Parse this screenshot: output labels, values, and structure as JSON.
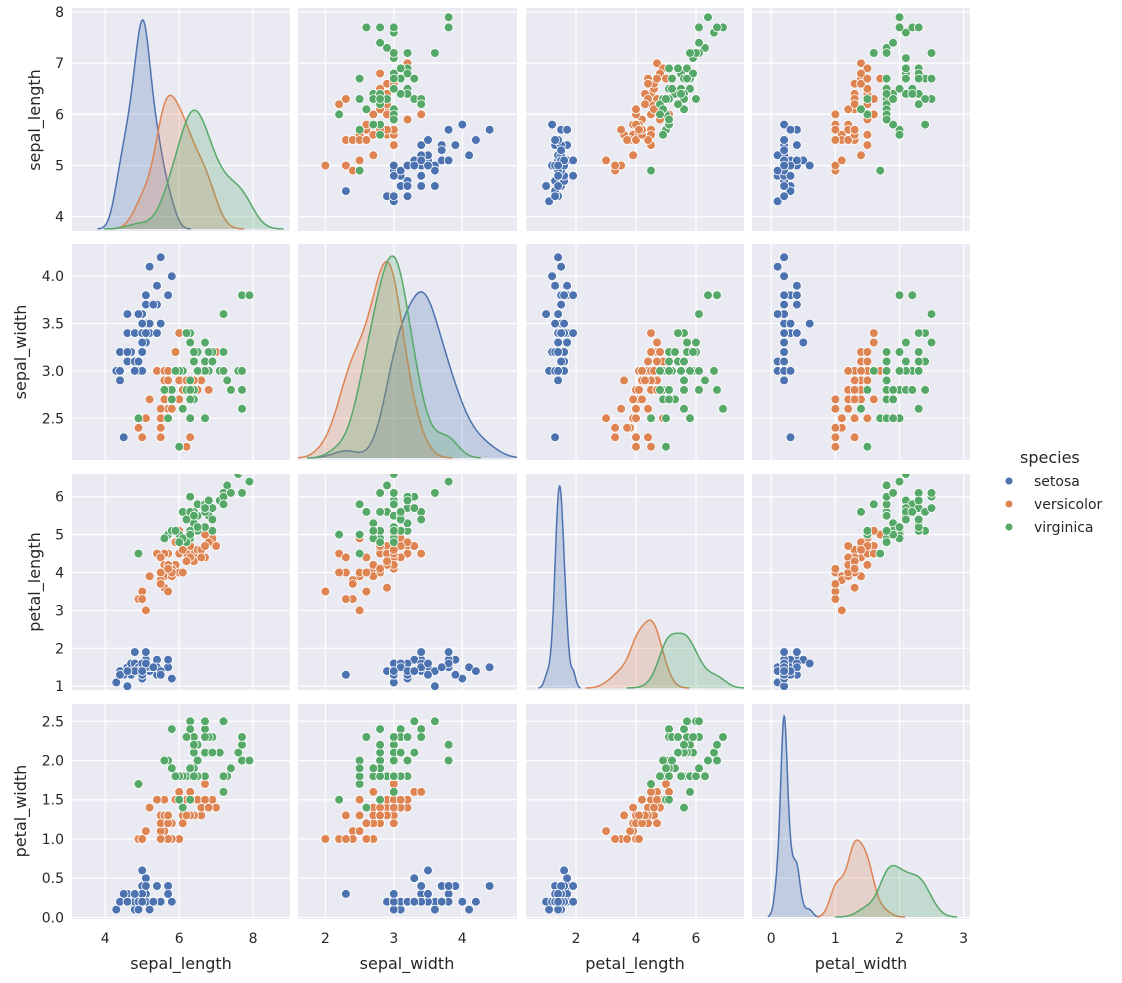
{
  "chart_data": {
    "type": "scatter",
    "subtype": "pairplot",
    "variables": [
      "sepal_length",
      "sepal_width",
      "petal_length",
      "petal_width"
    ],
    "hue": "species",
    "legend": {
      "title": "species",
      "placement": "right",
      "entries": [
        {
          "label": "setosa",
          "color": "#4c72b0"
        },
        {
          "label": "versicolor",
          "color": "#dd8452"
        },
        {
          "label": "virginica",
          "color": "#55a868"
        }
      ]
    },
    "diagonal": "kde",
    "axes": {
      "sepal_length": {
        "label": "sepal_length",
        "lim": [
          3.7,
          8.2
        ],
        "ticks": [
          4,
          6,
          8
        ],
        "yticks": [
          4,
          5,
          6,
          7,
          8
        ]
      },
      "sepal_width": {
        "label": "sepal_width",
        "lim": [
          1.8,
          4.8
        ],
        "ticks": [
          2,
          3,
          4
        ],
        "yticks": [
          2.5,
          3.0,
          3.5,
          4.0
        ],
        "ylim": [
          2.06,
          4.34
        ]
      },
      "petal_length": {
        "label": "petal_length",
        "lim": [
          0.67,
          7.4
        ],
        "ticks": [
          2,
          4,
          6
        ],
        "yticks": [
          1,
          2,
          3,
          4,
          5,
          6
        ],
        "ylim": [
          0.9,
          6.6
        ]
      },
      "petal_width": {
        "label": "petal_width",
        "lim": [
          -0.3,
          3.0
        ],
        "ticks": [
          0,
          1,
          2,
          3
        ],
        "yticks": [
          0.0,
          0.5,
          1.0,
          1.5,
          2.0,
          2.5
        ],
        "ylim": [
          -0.02,
          2.72
        ]
      }
    },
    "row_ylims": {
      "sepal_length": [
        3.72,
        8.08
      ],
      "sepal_width": [
        2.06,
        4.34
      ],
      "petal_length": [
        0.9,
        6.6
      ],
      "petal_width": [
        -0.02,
        2.72
      ]
    },
    "col_xlims": {
      "sepal_length": [
        3.1,
        9.0
      ],
      "sepal_width": [
        1.6,
        4.8
      ],
      "petal_length": [
        0.33,
        7.6
      ],
      "petal_width": [
        -0.3,
        3.1
      ]
    },
    "species": {
      "setosa": [
        [
          5.1,
          3.5,
          1.4,
          0.2
        ],
        [
          4.9,
          3.0,
          1.4,
          0.2
        ],
        [
          4.7,
          3.2,
          1.3,
          0.2
        ],
        [
          4.6,
          3.1,
          1.5,
          0.2
        ],
        [
          5.0,
          3.6,
          1.4,
          0.2
        ],
        [
          5.4,
          3.9,
          1.7,
          0.4
        ],
        [
          4.6,
          3.4,
          1.4,
          0.3
        ],
        [
          5.0,
          3.4,
          1.5,
          0.2
        ],
        [
          4.4,
          2.9,
          1.4,
          0.2
        ],
        [
          4.9,
          3.1,
          1.5,
          0.1
        ],
        [
          5.4,
          3.7,
          1.5,
          0.2
        ],
        [
          4.8,
          3.4,
          1.6,
          0.2
        ],
        [
          4.8,
          3.0,
          1.4,
          0.1
        ],
        [
          4.3,
          3.0,
          1.1,
          0.1
        ],
        [
          5.8,
          4.0,
          1.2,
          0.2
        ],
        [
          5.7,
          4.4,
          1.5,
          0.4
        ],
        [
          5.4,
          3.9,
          1.3,
          0.4
        ],
        [
          5.1,
          3.5,
          1.4,
          0.3
        ],
        [
          5.7,
          3.8,
          1.7,
          0.3
        ],
        [
          5.1,
          3.8,
          1.5,
          0.3
        ],
        [
          5.4,
          3.4,
          1.7,
          0.2
        ],
        [
          5.1,
          3.7,
          1.5,
          0.4
        ],
        [
          4.6,
          3.6,
          1.0,
          0.2
        ],
        [
          5.1,
          3.3,
          1.7,
          0.5
        ],
        [
          4.8,
          3.4,
          1.9,
          0.2
        ],
        [
          5.0,
          3.0,
          1.6,
          0.2
        ],
        [
          5.0,
          3.4,
          1.6,
          0.4
        ],
        [
          5.2,
          3.5,
          1.5,
          0.2
        ],
        [
          5.2,
          3.4,
          1.4,
          0.2
        ],
        [
          4.7,
          3.2,
          1.6,
          0.2
        ],
        [
          4.8,
          3.1,
          1.6,
          0.2
        ],
        [
          5.4,
          3.4,
          1.5,
          0.4
        ],
        [
          5.2,
          4.1,
          1.5,
          0.1
        ],
        [
          5.5,
          4.2,
          1.4,
          0.2
        ],
        [
          4.9,
          3.1,
          1.5,
          0.2
        ],
        [
          5.0,
          3.2,
          1.2,
          0.2
        ],
        [
          5.5,
          3.5,
          1.3,
          0.2
        ],
        [
          4.9,
          3.6,
          1.4,
          0.1
        ],
        [
          4.4,
          3.0,
          1.3,
          0.2
        ],
        [
          5.1,
          3.4,
          1.5,
          0.2
        ],
        [
          5.0,
          3.5,
          1.3,
          0.3
        ],
        [
          4.5,
          2.3,
          1.3,
          0.3
        ],
        [
          4.4,
          3.2,
          1.3,
          0.2
        ],
        [
          5.0,
          3.5,
          1.6,
          0.6
        ],
        [
          5.1,
          3.8,
          1.9,
          0.4
        ],
        [
          4.8,
          3.0,
          1.4,
          0.3
        ],
        [
          5.1,
          3.8,
          1.6,
          0.2
        ],
        [
          4.6,
          3.2,
          1.4,
          0.2
        ],
        [
          5.3,
          3.7,
          1.5,
          0.2
        ],
        [
          5.0,
          3.3,
          1.4,
          0.2
        ]
      ],
      "versicolor": [
        [
          7.0,
          3.2,
          4.7,
          1.4
        ],
        [
          6.4,
          3.2,
          4.5,
          1.5
        ],
        [
          6.9,
          3.1,
          4.9,
          1.5
        ],
        [
          5.5,
          2.3,
          4.0,
          1.3
        ],
        [
          6.5,
          2.8,
          4.6,
          1.5
        ],
        [
          5.7,
          2.8,
          4.5,
          1.3
        ],
        [
          6.3,
          3.3,
          4.7,
          1.6
        ],
        [
          4.9,
          2.4,
          3.3,
          1.0
        ],
        [
          6.6,
          2.9,
          4.6,
          1.3
        ],
        [
          5.2,
          2.7,
          3.9,
          1.4
        ],
        [
          5.0,
          2.0,
          3.5,
          1.0
        ],
        [
          5.9,
          3.0,
          4.2,
          1.5
        ],
        [
          6.0,
          2.2,
          4.0,
          1.0
        ],
        [
          6.1,
          2.9,
          4.7,
          1.4
        ],
        [
          5.6,
          2.9,
          3.6,
          1.3
        ],
        [
          6.7,
          3.1,
          4.4,
          1.4
        ],
        [
          5.6,
          3.0,
          4.5,
          1.5
        ],
        [
          5.8,
          2.7,
          4.1,
          1.0
        ],
        [
          6.2,
          2.2,
          4.5,
          1.5
        ],
        [
          5.6,
          2.5,
          3.9,
          1.1
        ],
        [
          5.9,
          3.2,
          4.8,
          1.8
        ],
        [
          6.1,
          2.8,
          4.0,
          1.3
        ],
        [
          6.3,
          2.5,
          4.9,
          1.5
        ],
        [
          6.1,
          2.8,
          4.7,
          1.2
        ],
        [
          6.4,
          2.9,
          4.3,
          1.3
        ],
        [
          6.6,
          3.0,
          4.4,
          1.4
        ],
        [
          6.8,
          2.8,
          4.8,
          1.4
        ],
        [
          6.7,
          3.0,
          5.0,
          1.7
        ],
        [
          6.0,
          2.9,
          4.5,
          1.5
        ],
        [
          5.7,
          2.6,
          3.5,
          1.0
        ],
        [
          5.5,
          2.4,
          3.8,
          1.1
        ],
        [
          5.5,
          2.4,
          3.7,
          1.0
        ],
        [
          5.8,
          2.7,
          3.9,
          1.2
        ],
        [
          6.0,
          2.7,
          5.1,
          1.6
        ],
        [
          5.4,
          3.0,
          4.5,
          1.5
        ],
        [
          6.0,
          3.4,
          4.5,
          1.6
        ],
        [
          6.7,
          3.1,
          4.7,
          1.5
        ],
        [
          6.3,
          2.3,
          4.4,
          1.3
        ],
        [
          5.6,
          3.0,
          4.1,
          1.3
        ],
        [
          5.5,
          2.5,
          4.0,
          1.3
        ],
        [
          5.5,
          2.6,
          4.4,
          1.2
        ],
        [
          6.1,
          3.0,
          4.6,
          1.4
        ],
        [
          5.8,
          2.6,
          4.0,
          1.2
        ],
        [
          5.0,
          2.3,
          3.3,
          1.0
        ],
        [
          5.6,
          2.7,
          4.2,
          1.3
        ],
        [
          5.7,
          3.0,
          4.2,
          1.2
        ],
        [
          5.7,
          2.9,
          4.2,
          1.3
        ],
        [
          6.2,
          2.9,
          4.3,
          1.3
        ],
        [
          5.1,
          2.5,
          3.0,
          1.1
        ],
        [
          5.7,
          2.8,
          4.1,
          1.3
        ]
      ],
      "virginica": [
        [
          6.3,
          3.3,
          6.0,
          2.5
        ],
        [
          5.8,
          2.7,
          5.1,
          1.9
        ],
        [
          7.1,
          3.0,
          5.9,
          2.1
        ],
        [
          6.3,
          2.9,
          5.6,
          1.8
        ],
        [
          6.5,
          3.0,
          5.8,
          2.2
        ],
        [
          7.6,
          3.0,
          6.6,
          2.1
        ],
        [
          4.9,
          2.5,
          4.5,
          1.7
        ],
        [
          7.3,
          2.9,
          6.3,
          1.8
        ],
        [
          6.7,
          2.5,
          5.8,
          1.8
        ],
        [
          7.2,
          3.6,
          6.1,
          2.5
        ],
        [
          6.5,
          3.2,
          5.1,
          2.0
        ],
        [
          6.4,
          2.7,
          5.3,
          1.9
        ],
        [
          6.8,
          3.0,
          5.5,
          2.1
        ],
        [
          5.7,
          2.5,
          5.0,
          2.0
        ],
        [
          5.8,
          2.8,
          5.1,
          2.4
        ],
        [
          6.4,
          3.2,
          5.3,
          2.3
        ],
        [
          6.5,
          3.0,
          5.5,
          1.8
        ],
        [
          7.7,
          3.8,
          6.7,
          2.2
        ],
        [
          7.7,
          2.6,
          6.9,
          2.3
        ],
        [
          6.0,
          2.2,
          5.0,
          1.5
        ],
        [
          6.9,
          3.2,
          5.7,
          2.3
        ],
        [
          5.6,
          2.8,
          4.9,
          2.0
        ],
        [
          7.7,
          2.8,
          6.7,
          2.0
        ],
        [
          6.3,
          2.7,
          4.9,
          1.8
        ],
        [
          6.7,
          3.3,
          5.7,
          2.1
        ],
        [
          7.2,
          3.2,
          6.0,
          1.8
        ],
        [
          6.2,
          2.8,
          4.8,
          1.8
        ],
        [
          6.1,
          3.0,
          4.9,
          1.8
        ],
        [
          6.4,
          2.8,
          5.6,
          2.1
        ],
        [
          7.2,
          3.0,
          5.8,
          1.6
        ],
        [
          7.4,
          2.8,
          6.1,
          1.9
        ],
        [
          7.9,
          3.8,
          6.4,
          2.0
        ],
        [
          6.4,
          2.8,
          5.6,
          2.2
        ],
        [
          6.3,
          2.8,
          5.1,
          1.5
        ],
        [
          6.1,
          2.6,
          5.6,
          1.4
        ],
        [
          7.7,
          3.0,
          6.1,
          2.3
        ],
        [
          6.3,
          3.4,
          5.6,
          2.4
        ],
        [
          6.4,
          3.1,
          5.5,
          1.8
        ],
        [
          6.0,
          3.0,
          4.8,
          1.8
        ],
        [
          6.9,
          3.1,
          5.4,
          2.1
        ],
        [
          6.7,
          3.1,
          5.6,
          2.4
        ],
        [
          6.9,
          3.1,
          5.1,
          2.3
        ],
        [
          5.8,
          2.7,
          5.1,
          1.9
        ],
        [
          6.8,
          3.2,
          5.9,
          2.3
        ],
        [
          6.7,
          3.3,
          5.7,
          2.5
        ],
        [
          6.7,
          3.0,
          5.2,
          2.3
        ],
        [
          6.3,
          2.5,
          5.0,
          1.9
        ],
        [
          6.5,
          3.0,
          5.2,
          2.0
        ],
        [
          6.2,
          3.4,
          5.4,
          2.3
        ],
        [
          5.9,
          3.0,
          5.1,
          1.8
        ]
      ]
    }
  }
}
